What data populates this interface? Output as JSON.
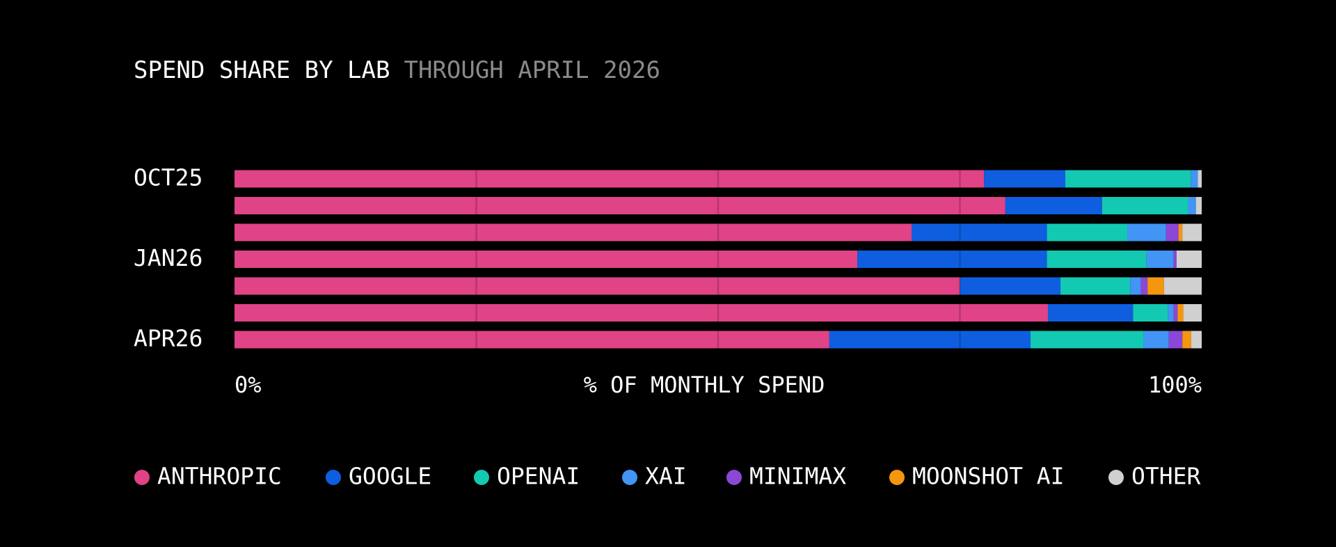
{
  "chart_data": {
    "type": "stacked-bar-horizontal",
    "title": "SPEND SHARE BY LAB",
    "subtitle": "THROUGH APRIL 2026",
    "x_label": "% OF MONTHLY SPEND",
    "categories": [
      "OCT25",
      null,
      null,
      "JAN26",
      null,
      null,
      "APR26"
    ],
    "xlim": [
      0,
      100
    ],
    "xticks": [
      {
        "value": 0,
        "label": "0%"
      },
      {
        "value": 100,
        "label": "100%"
      }
    ],
    "xgrid": [
      25,
      50,
      75
    ],
    "legend": "bottom",
    "series": [
      {
        "name": "ANTHROPIC",
        "color": "#e04386",
        "values": [
          77.5,
          79.7,
          70.0,
          64.4,
          75.0,
          84.1,
          61.5
        ]
      },
      {
        "name": "GOOGLE",
        "color": "#0f5ee0",
        "values": [
          8.4,
          10.0,
          14.0,
          19.6,
          10.4,
          8.8,
          20.8
        ]
      },
      {
        "name": "OPENAI",
        "color": "#14c9b2",
        "values": [
          13.0,
          8.9,
          8.3,
          10.3,
          7.2,
          3.6,
          11.7
        ]
      },
      {
        "name": "XAI",
        "color": "#4294f5",
        "values": [
          0.7,
          0.8,
          4.0,
          2.8,
          1.1,
          0.6,
          2.6
        ]
      },
      {
        "name": "MINIMAX",
        "color": "#8b47d6",
        "values": [
          0,
          0,
          1.3,
          0.3,
          0.7,
          0.4,
          1.4
        ]
      },
      {
        "name": "MOONSHOT AI",
        "color": "#f5960f",
        "values": [
          0,
          0,
          0.4,
          0,
          1.7,
          0.6,
          0.9
        ]
      },
      {
        "name": "OTHER",
        "color": "#d0d0d0",
        "values": [
          0.4,
          0.6,
          2.0,
          2.6,
          3.9,
          1.9,
          1.1
        ]
      }
    ]
  }
}
